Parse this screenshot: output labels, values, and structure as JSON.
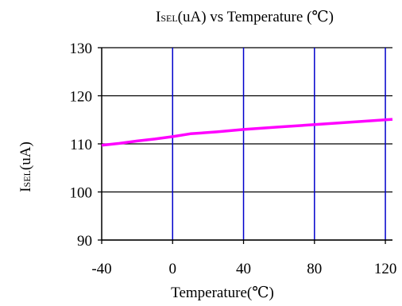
{
  "chart_data": {
    "type": "line",
    "title": {
      "main": "I",
      "sub": "SEL",
      "rest": "(uA) vs Temperature (℃)"
    },
    "xlabel": "Temperature(℃)",
    "ylabel": {
      "main": "I",
      "sub": "SEL",
      "rest": "(uA)"
    },
    "xlim": [
      -40,
      124
    ],
    "ylim": [
      90,
      130
    ],
    "x_ticks": [
      -40,
      0,
      40,
      80,
      120
    ],
    "y_ticks": [
      90,
      100,
      110,
      120,
      130
    ],
    "grid": {
      "horizontal": true,
      "vertical": true
    },
    "colors": {
      "series": "#ff00ff",
      "vgrid": "#0000cc",
      "hgrid": "#000000"
    },
    "series": [
      {
        "x": [
          -40,
          -30,
          -20,
          -10,
          0,
          10,
          25,
          40,
          60,
          80,
          100,
          124
        ],
        "values": [
          109.7,
          110.1,
          110.6,
          111.0,
          111.5,
          112.1,
          112.5,
          113.0,
          113.5,
          114.0,
          114.5,
          115.1
        ]
      }
    ]
  }
}
